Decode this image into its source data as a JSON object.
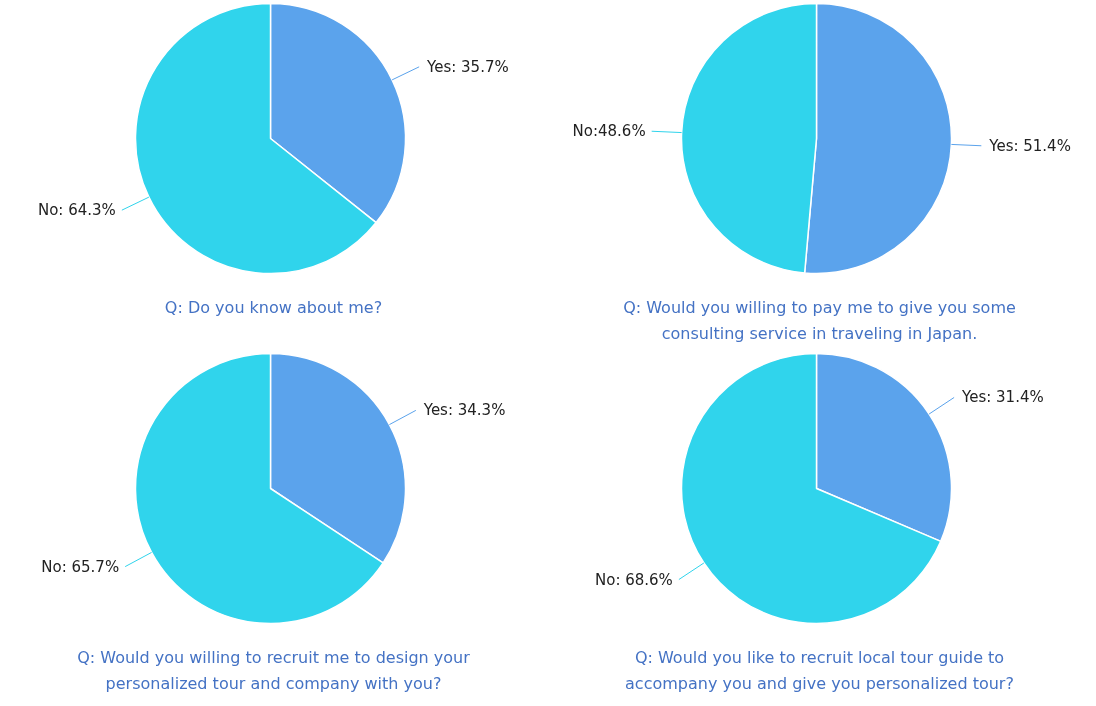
{
  "chart_data": [
    {
      "type": "pie",
      "title": "Q: Do you know about me?",
      "categories": [
        "Yes",
        "No"
      ],
      "values": [
        35.7,
        64.3
      ],
      "colors": [
        "#5ba3ec",
        "#30d4ec"
      ],
      "value_labels": [
        ": 35.7%",
        ": 64.3%"
      ]
    },
    {
      "type": "pie",
      "title": "Q: Would you willing to pay me to give you some consulting service in traveling in Japan.",
      "categories": [
        "Yes",
        "No"
      ],
      "values": [
        51.4,
        48.6
      ],
      "colors": [
        "#5ba3ec",
        "#30d4ec"
      ],
      "value_labels": [
        ": 51.4%",
        ":48.6%"
      ]
    },
    {
      "type": "pie",
      "title": "Q: Would you willing to recruit me to design your personalized tour and company with you?",
      "categories": [
        "Yes",
        "No"
      ],
      "values": [
        34.3,
        65.7
      ],
      "colors": [
        "#5ba3ec",
        "#30d4ec"
      ],
      "value_labels": [
        ": 34.3%",
        ": 65.7%"
      ]
    },
    {
      "type": "pie",
      "title": "Q: Would you like to recruit local tour guide to accompany you and give you personalized tour?",
      "categories": [
        "Yes",
        "No"
      ],
      "values": [
        31.4,
        68.6
      ],
      "colors": [
        "#5ba3ec",
        "#30d4ec"
      ],
      "value_labels": [
        ": 31.4%",
        ": 68.6%"
      ]
    }
  ]
}
